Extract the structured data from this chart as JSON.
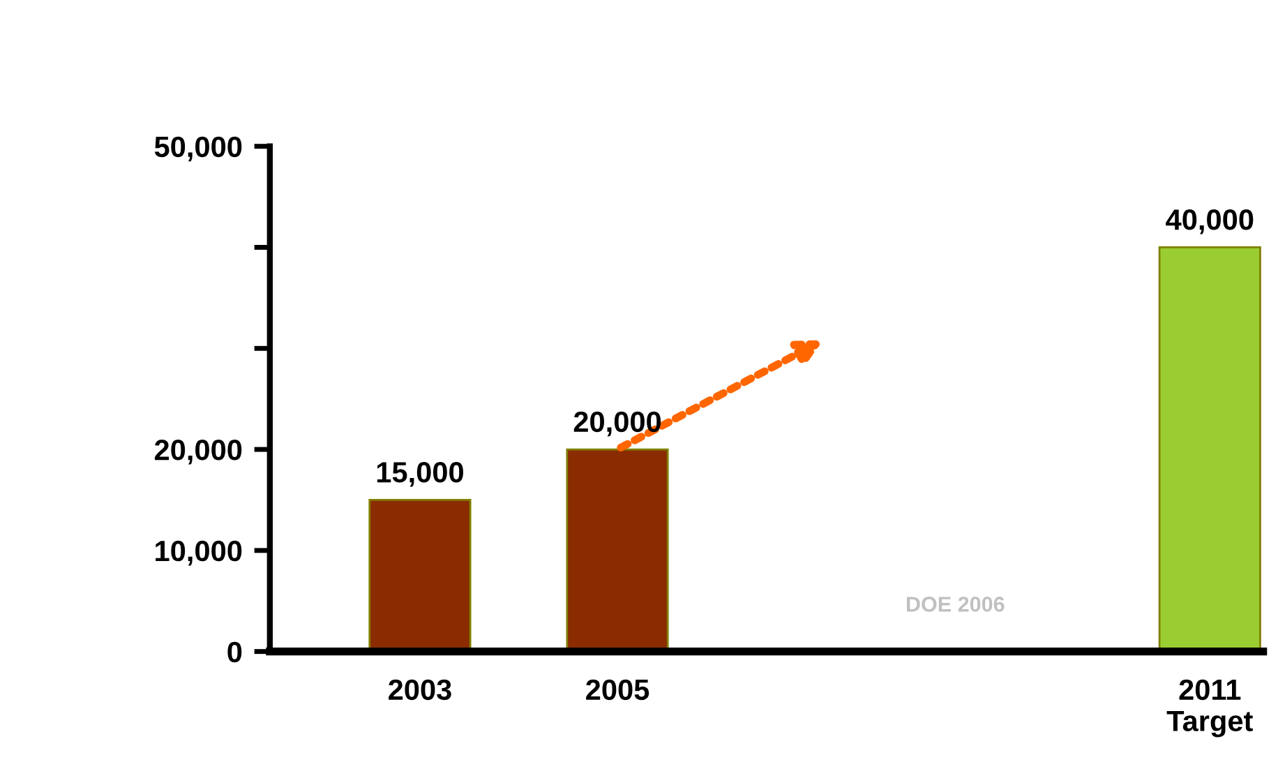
{
  "chart_data": {
    "type": "bar",
    "categories": [
      "2003",
      "2005",
      null,
      null,
      "2011\nTarget"
    ],
    "values": [
      15000,
      20000,
      null,
      null,
      40000
    ],
    "colors": [
      "#8b2c00",
      "#8b2c00",
      null,
      null,
      "#9acd32"
    ],
    "ylim": [
      0,
      50000
    ],
    "yticks": [
      0,
      {
        "value": 10000,
        "label": "10,000"
      },
      {
        "value": 20000,
        "label": "20,000"
      },
      {
        "value": 30000,
        "label": null
      },
      {
        "value": 40000,
        "label": null
      },
      {
        "value": 50000,
        "label": "50,000"
      }
    ],
    "data_labels": true,
    "value_labels": [
      "15,000",
      "20,000",
      null,
      null,
      "40,000"
    ],
    "grid": false,
    "legend": false,
    "annotations": [
      "DOE 2006"
    ]
  }
}
